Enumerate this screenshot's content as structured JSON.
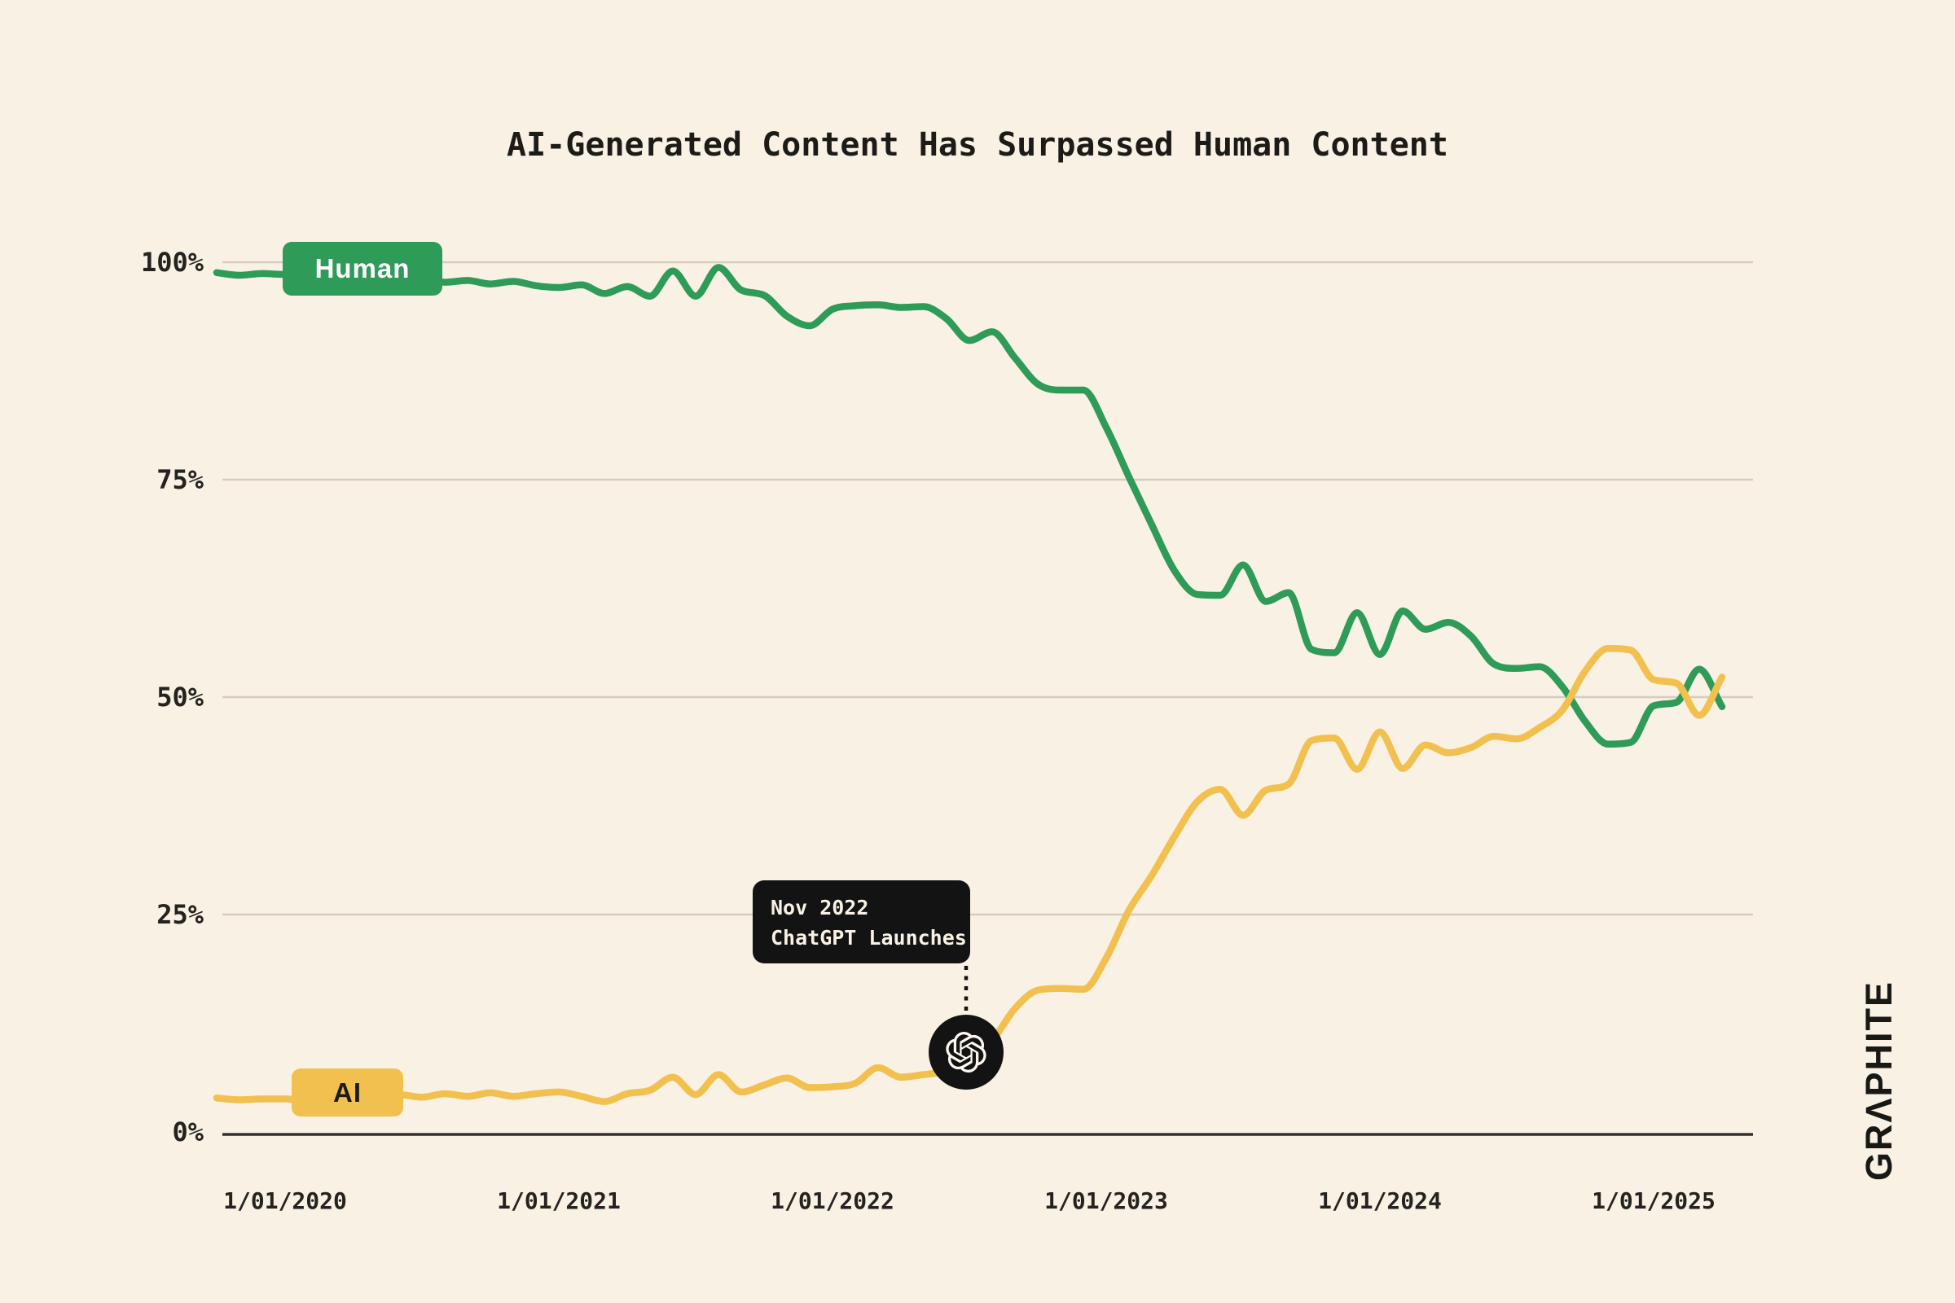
{
  "title": "AI-Generated Content Has Surpassed Human Content",
  "colors": {
    "background": "#f9f1e4",
    "human_green": "#2f9b58",
    "ai_yellow": "#f2c04e",
    "gridline": "#d7cdbf",
    "axis": "#33312c",
    "ink": "#1c1b18",
    "tooltip_bg": "#131313",
    "tooltip_text": "#f9f1e4"
  },
  "legend": {
    "human": "Human",
    "ai": "AI"
  },
  "annotation": {
    "line1": "Nov 2022",
    "line2": "ChatGPT Launches",
    "icon": "openai-logo"
  },
  "branding": {
    "logo": "GRΛPHITE"
  },
  "chart_data": {
    "type": "line",
    "title": "AI-Generated Content Has Surpassed Human Content",
    "grid": "horizontal",
    "ylim": [
      0,
      100
    ],
    "y_tick_labels": [
      "100%",
      "75%",
      "50%",
      "25%",
      "0%"
    ],
    "x_tick_labels": [
      "1/01/2020",
      "1/01/2021",
      "1/01/2022",
      "1/01/2023",
      "1/01/2024",
      "1/01/2025"
    ],
    "legend_position": "badges-on-lines",
    "x_months": [
      "2019-10",
      "2019-11",
      "2019-12",
      "2020-01",
      "2020-02",
      "2020-03",
      "2020-04",
      "2020-05",
      "2020-06",
      "2020-07",
      "2020-08",
      "2020-09",
      "2020-10",
      "2020-11",
      "2020-12",
      "2021-01",
      "2021-02",
      "2021-03",
      "2021-04",
      "2021-05",
      "2021-06",
      "2021-07",
      "2021-08",
      "2021-09",
      "2021-10",
      "2021-11",
      "2021-12",
      "2022-01",
      "2022-02",
      "2022-03",
      "2022-04",
      "2022-05",
      "2022-06",
      "2022-07",
      "2022-08",
      "2022-09",
      "2022-10",
      "2022-11",
      "2022-12",
      "2023-01",
      "2023-02",
      "2023-03",
      "2023-04",
      "2023-05",
      "2023-06",
      "2023-07",
      "2023-08",
      "2023-09",
      "2023-10",
      "2023-11",
      "2023-12",
      "2024-01",
      "2024-02",
      "2024-03",
      "2024-04",
      "2024-05",
      "2024-06",
      "2024-07",
      "2024-08",
      "2024-09",
      "2024-10",
      "2024-11",
      "2024-12",
      "2025-01",
      "2025-02",
      "2025-03",
      "2025-04"
    ],
    "series": [
      {
        "name": "Human",
        "color": "#2f9b58",
        "values": [
          98.8,
          98.5,
          98.7,
          98.6,
          98.8,
          98.1,
          98.4,
          98.2,
          98.0,
          98.3,
          97.7,
          97.9,
          97.5,
          97.8,
          97.3,
          97.1,
          97.4,
          96.4,
          97.2,
          96.1,
          99.0,
          96.1,
          99.4,
          96.8,
          96.2,
          93.8,
          92.7,
          94.6,
          95.0,
          95.1,
          94.8,
          94.9,
          93.5,
          91.0,
          92.0,
          89.0,
          86.0,
          85.3,
          85.3,
          81.0,
          75.3,
          69.8,
          64.5,
          61.8,
          61.7,
          65.2,
          61.0,
          62.0,
          55.5,
          55.1,
          59.7,
          54.9,
          59.9,
          57.8,
          58.6,
          57.0,
          53.8,
          53.3,
          53.5,
          51.2,
          47.2,
          44.6,
          44.8,
          49.0,
          49.4,
          53.2,
          48.9
        ]
      },
      {
        "name": "AI",
        "color": "#f2c04e",
        "values": [
          3.9,
          3.7,
          3.8,
          3.8,
          3.5,
          3.9,
          4.1,
          3.9,
          4.3,
          4.0,
          4.4,
          4.1,
          4.5,
          4.1,
          4.4,
          4.6,
          4.1,
          3.5,
          4.4,
          4.8,
          6.3,
          4.3,
          6.6,
          4.6,
          5.4,
          6.2,
          5.1,
          5.2,
          5.6,
          7.4,
          6.3,
          6.6,
          7.0,
          8.2,
          10.5,
          14.2,
          16.3,
          16.5,
          16.4,
          20.0,
          25.5,
          29.5,
          34.0,
          38.0,
          39.4,
          36.4,
          39.3,
          40.0,
          45.0,
          45.3,
          41.7,
          46.0,
          41.8,
          44.5,
          43.6,
          44.2,
          45.5,
          45.2,
          46.5,
          48.5,
          53.0,
          55.6,
          55.4,
          52.0,
          51.6,
          47.9,
          52.3
        ]
      }
    ],
    "annotations": [
      {
        "text": "Nov 2022 ChatGPT Launches",
        "marker": "openai-logo",
        "marker_value_pct": 9.5
      }
    ]
  }
}
